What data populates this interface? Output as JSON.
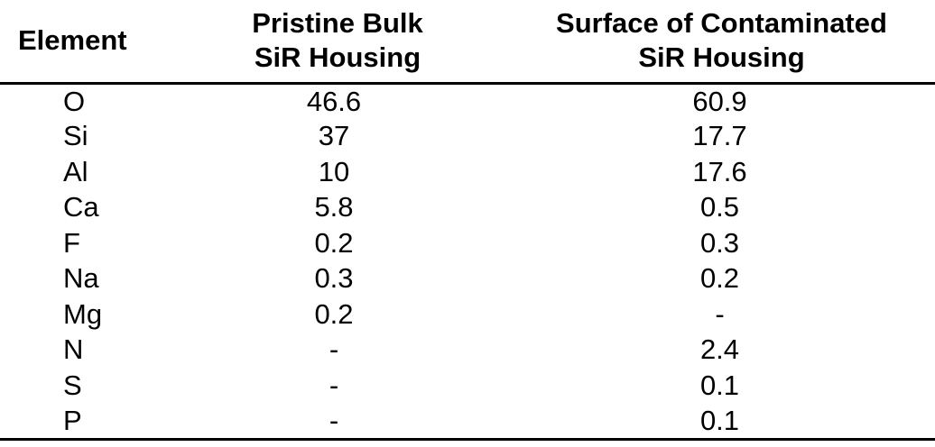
{
  "table": {
    "headers": {
      "element": "Element",
      "bulk_line1": "Pristine Bulk",
      "bulk_line2": "SiR Housing",
      "surface_line1": "Surface of Contaminated",
      "surface_line2": "SiR Housing"
    },
    "rows": [
      {
        "element": "O",
        "bulk": "46.6",
        "surface": "60.9"
      },
      {
        "element": "Si",
        "bulk": "37",
        "surface": "17.7"
      },
      {
        "element": "Al",
        "bulk": "10",
        "surface": "17.6"
      },
      {
        "element": "Ca",
        "bulk": "5.8",
        "surface": "0.5"
      },
      {
        "element": "F",
        "bulk": "0.2",
        "surface": "0.3"
      },
      {
        "element": "Na",
        "bulk": "0.3",
        "surface": "0.2"
      },
      {
        "element": "Mg",
        "bulk": "0.2",
        "surface": "-"
      },
      {
        "element": "N",
        "bulk": "-",
        "surface": "2.4"
      },
      {
        "element": "S",
        "bulk": "-",
        "surface": "0.1"
      },
      {
        "element": "P",
        "bulk": "-",
        "surface": "0.1"
      }
    ]
  }
}
